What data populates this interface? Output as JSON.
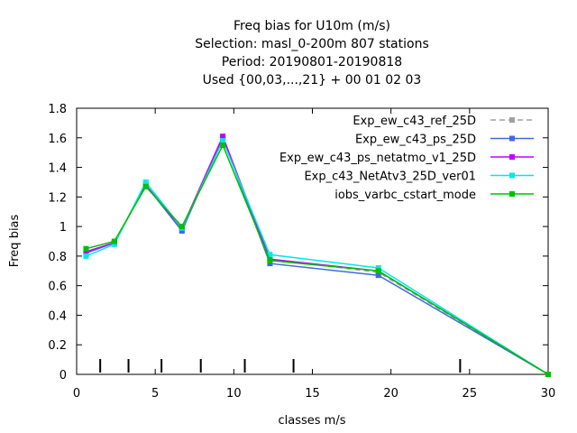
{
  "chart_data": {
    "type": "line",
    "title": [
      "Freq bias  for U10m (m/s)",
      "Selection: masl_0-200m    807 stations",
      "Period: 20190801-20190818",
      "Used {00,03,...,21} + 00 01 02 03"
    ],
    "xlabel": "classes m/s",
    "ylabel": "Freq bias",
    "xlim": [
      0,
      30
    ],
    "ylim": [
      0,
      1.8
    ],
    "xticks": [
      0,
      5,
      10,
      15,
      20,
      25,
      30
    ],
    "yticks": [
      0,
      0.2,
      0.4,
      0.6,
      0.8,
      1,
      1.2,
      1.4,
      1.6,
      1.8
    ],
    "xtick_labels": [
      "0",
      "5",
      "10",
      "15",
      "20",
      "25",
      "30"
    ],
    "ytick_labels": [
      "0",
      "0.2",
      "0.4",
      "0.6",
      "0.8",
      "1",
      "1.2",
      "1.4",
      "1.6",
      "1.8"
    ],
    "class_boundaries": [
      1.5,
      3.3,
      5.4,
      7.9,
      10.7,
      13.8,
      24.4
    ],
    "legend_position": "top-right",
    "grid": false,
    "x": [
      0.6,
      2.4,
      4.4,
      6.7,
      9.3,
      12.3,
      19.2,
      30
    ],
    "series": [
      {
        "name": "Exp_ew_c43_ref_25D",
        "color": "#a0a0a0",
        "dashed": true,
        "values": [
          0.82,
          0.89,
          1.28,
          0.98,
          1.6,
          0.78,
          0.69,
          0.0
        ]
      },
      {
        "name": "Exp_ew_c43_ps_25D",
        "color": "#4169e1",
        "dashed": false,
        "values": [
          0.82,
          0.89,
          1.28,
          0.97,
          1.6,
          0.75,
          0.67,
          0.0
        ]
      },
      {
        "name": "Exp_ew_c43_ps_netatmo_v1_25D",
        "color": "#c000ff",
        "dashed": false,
        "values": [
          0.83,
          0.89,
          1.28,
          0.99,
          1.61,
          0.78,
          0.7,
          0.0
        ]
      },
      {
        "name": "Exp_c43_NetAtv3_25D_ver01",
        "color": "#00e8e8",
        "dashed": false,
        "values": [
          0.8,
          0.88,
          1.3,
          0.99,
          1.58,
          0.81,
          0.72,
          0.0
        ]
      },
      {
        "name": "iobs_varbc_cstart_mode",
        "color": "#00c000",
        "dashed": false,
        "values": [
          0.85,
          0.9,
          1.27,
          1.0,
          1.55,
          0.77,
          0.7,
          0.0
        ]
      }
    ]
  }
}
